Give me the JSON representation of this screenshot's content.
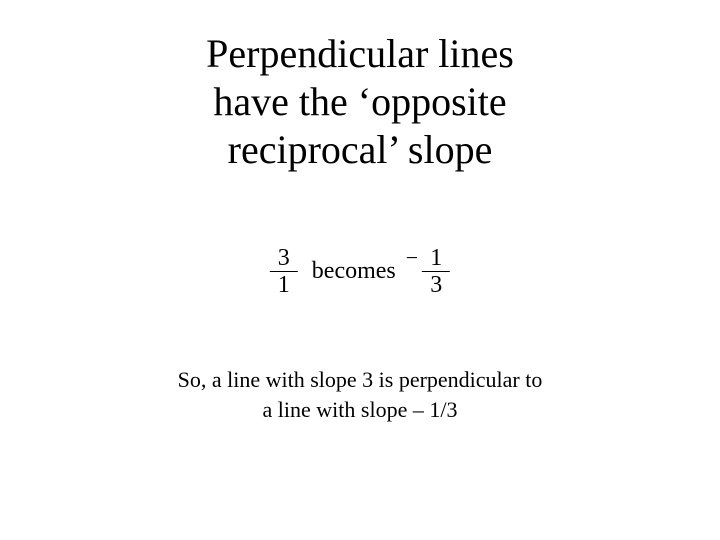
{
  "page": {
    "background_color": "#ffffff",
    "text_color": "#000000",
    "font_family": "Times New Roman"
  },
  "title": {
    "line1": "Perpendicular lines",
    "line2": "have the ‘opposite",
    "line3": "reciprocal’ slope",
    "fontsize": 40,
    "font_weight": "normal"
  },
  "equation": {
    "frac1_num": "3",
    "frac1_den": "1",
    "connector": "becomes",
    "neg_sign": "−",
    "frac2_num": "1",
    "frac2_den": "3",
    "fontsize": 24,
    "line_color": "#000000"
  },
  "caption": {
    "line1": "So, a line with slope 3 is perpendicular to",
    "line2": "a line with slope – 1/3",
    "fontsize": 22
  }
}
